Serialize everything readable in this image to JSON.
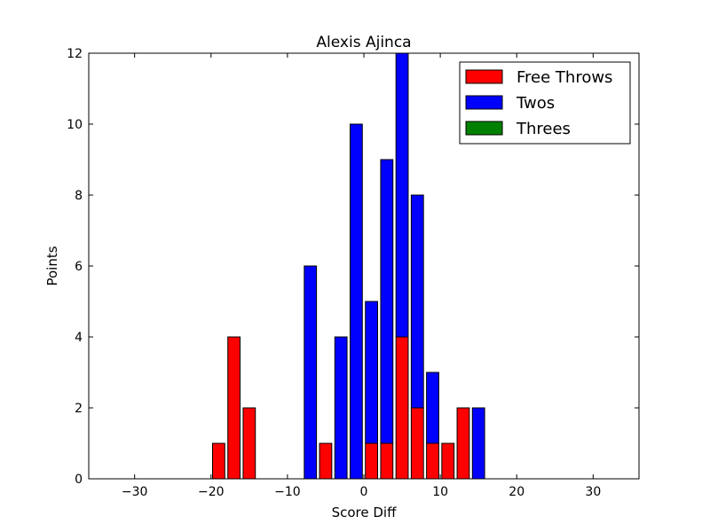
{
  "chart_data": {
    "type": "bar",
    "stacked": true,
    "title": "Alexis Ajinca",
    "xlabel": "Score Diff",
    "ylabel": "Points",
    "xlim": [
      -36,
      36
    ],
    "ylim": [
      0,
      12
    ],
    "xticks": [
      -30,
      -20,
      -10,
      0,
      10,
      20,
      30
    ],
    "xtick_labels": [
      "−30",
      "−20",
      "−10",
      "0",
      "10",
      "20",
      "30"
    ],
    "yticks": [
      0,
      2,
      4,
      6,
      8,
      10,
      12
    ],
    "ytick_labels": [
      "0",
      "2",
      "4",
      "6",
      "8",
      "10",
      "12"
    ],
    "grid": false,
    "legend_position": "top-right",
    "bar_width": 1.6,
    "x": [
      -35,
      -33,
      -31,
      -29,
      -27,
      -25,
      -23,
      -21,
      -19,
      -17,
      -15,
      -13,
      -11,
      -9,
      -7,
      -5,
      -3,
      -1,
      1,
      3,
      5,
      7,
      9,
      11,
      13,
      15,
      17,
      19,
      21,
      23,
      25,
      27,
      29,
      31,
      33,
      35
    ],
    "series": [
      {
        "name": "Free Throws",
        "color": "#ff0000",
        "values": [
          0,
          0,
          0,
          0,
          0,
          0,
          0,
          0,
          1,
          4,
          2,
          0,
          0,
          0,
          0,
          1,
          0,
          0,
          1,
          1,
          4,
          2,
          1,
          1,
          2,
          0,
          0,
          0,
          0,
          0,
          0,
          0,
          0,
          0,
          0,
          0
        ]
      },
      {
        "name": "Twos",
        "color": "#0000ff",
        "values": [
          0,
          0,
          0,
          0,
          0,
          0,
          0,
          0,
          0,
          0,
          0,
          0,
          0,
          0,
          6,
          0,
          4,
          10,
          4,
          8,
          8,
          6,
          2,
          0,
          0,
          2,
          0,
          0,
          0,
          0,
          0,
          0,
          0,
          0,
          0,
          0
        ]
      },
      {
        "name": "Threes",
        "color": "#008000",
        "values": [
          0,
          0,
          0,
          0,
          0,
          0,
          0,
          0,
          0,
          0,
          0,
          0,
          0,
          0,
          0,
          0,
          0,
          0,
          0,
          0,
          0,
          0,
          0,
          0,
          0,
          0,
          0,
          0,
          0,
          0,
          0,
          0,
          0,
          0,
          0,
          0
        ]
      }
    ]
  }
}
